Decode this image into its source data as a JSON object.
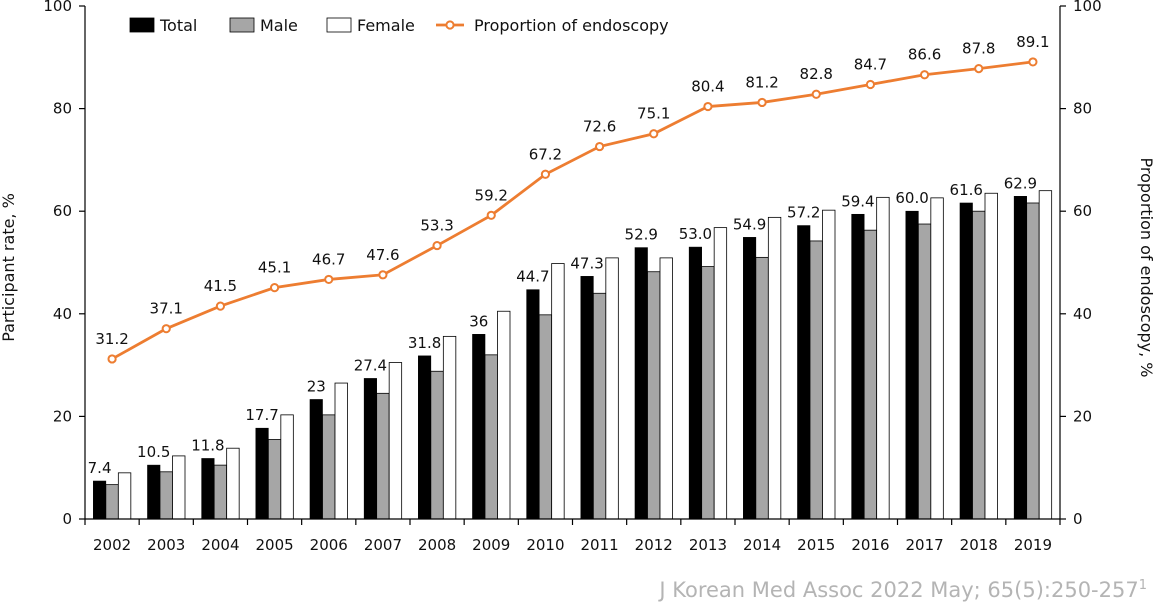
{
  "chart_data": {
    "type": "bar",
    "categories": [
      "2002",
      "2003",
      "2004",
      "2005",
      "2006",
      "2007",
      "2008",
      "2009",
      "2010",
      "2011",
      "2012",
      "2013",
      "2014",
      "2015",
      "2016",
      "2017",
      "2018",
      "2019"
    ],
    "series": [
      {
        "name": "Total",
        "type": "bar",
        "axis": "left",
        "color": "#000000",
        "values": [
          7.4,
          10.5,
          11.8,
          17.7,
          23.3,
          27.4,
          31.8,
          36.0,
          44.7,
          47.3,
          52.9,
          53.0,
          54.9,
          57.2,
          59.4,
          60.0,
          61.6,
          62.9
        ],
        "labels": [
          "7.4",
          "10.5",
          "11.8",
          "17.7",
          "23",
          "27.4",
          "31.8",
          "36",
          "44.7",
          "47.3",
          "52.9",
          "53.0",
          "54.9",
          "57.2",
          "59.4",
          "60.0",
          "61.6",
          "62.9"
        ]
      },
      {
        "name": "Male",
        "type": "bar",
        "axis": "left",
        "color": "#a6a6a6",
        "values": [
          6.7,
          9.2,
          10.5,
          15.5,
          20.3,
          24.5,
          28.8,
          32.0,
          39.8,
          44.0,
          48.2,
          49.2,
          51.0,
          54.2,
          56.3,
          57.5,
          60.0,
          61.6
        ]
      },
      {
        "name": "Female",
        "type": "bar",
        "axis": "left",
        "color": "#ffffff",
        "values": [
          9.0,
          12.3,
          13.8,
          20.3,
          26.5,
          30.5,
          35.6,
          40.5,
          49.8,
          50.9,
          50.9,
          56.8,
          58.8,
          60.2,
          62.7,
          62.6,
          63.5,
          64.0
        ]
      },
      {
        "name": "Proportion of endoscopy",
        "type": "line",
        "axis": "right",
        "color": "#ed7d31",
        "values": [
          31.2,
          37.1,
          41.5,
          45.1,
          46.7,
          47.6,
          53.3,
          59.2,
          67.2,
          72.6,
          75.1,
          80.4,
          81.2,
          82.8,
          84.7,
          86.6,
          87.8,
          89.1
        ],
        "labels": [
          "31.2",
          "37.1",
          "41.5",
          "45.1",
          "46.7",
          "47.6",
          "53.3",
          "59.2",
          "67.2",
          "72.6",
          "75.1",
          "80.4",
          "81.2",
          "82.8",
          "84.7",
          "86.6",
          "87.8",
          "89.1"
        ]
      }
    ],
    "ylabel": "Participant rate, %",
    "y2label": "Proportion of endoscopy, %",
    "ylim": [
      0,
      100
    ],
    "y2lim": [
      0,
      100
    ],
    "yticks": [
      "0",
      "20",
      "40",
      "60",
      "80",
      "100"
    ],
    "y2ticks": [
      "0",
      "20",
      "40",
      "60",
      "80",
      "100"
    ],
    "legend_position": "top-left",
    "grid": false
  },
  "source": {
    "text": "J Korean Med Assoc 2022 May; 65(5):250-257",
    "sup": "1"
  }
}
